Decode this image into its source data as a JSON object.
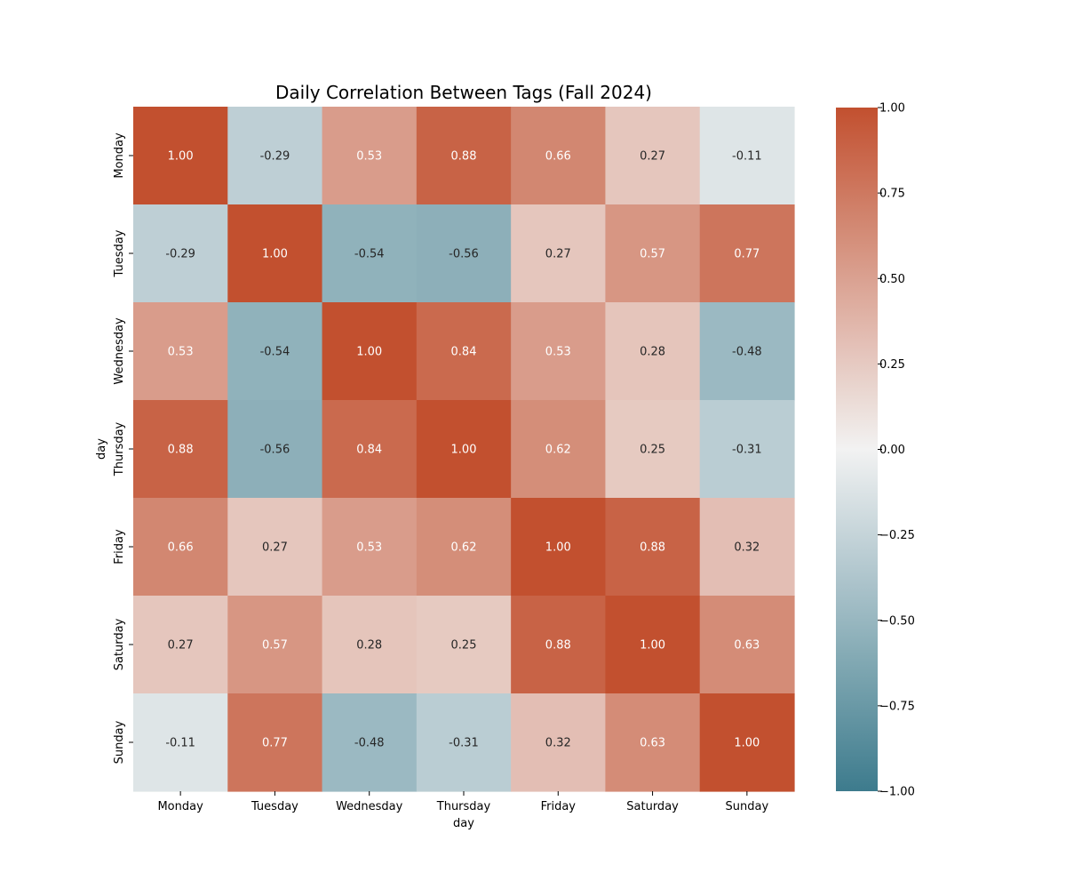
{
  "chart_data": {
    "type": "heatmap",
    "title": "Daily Correlation Between Tags (Fall 2024)",
    "xlabel": "day",
    "ylabel": "day",
    "rows": [
      "Monday",
      "Tuesday",
      "Wednesday",
      "Thursday",
      "Friday",
      "Saturday",
      "Sunday"
    ],
    "columns": [
      "Monday",
      "Tuesday",
      "Wednesday",
      "Thursday",
      "Friday",
      "Saturday",
      "Sunday"
    ],
    "values": [
      [
        1.0,
        -0.29,
        0.53,
        0.88,
        0.66,
        0.27,
        -0.11
      ],
      [
        -0.29,
        1.0,
        -0.54,
        -0.56,
        0.27,
        0.57,
        0.77
      ],
      [
        0.53,
        -0.54,
        1.0,
        0.84,
        0.53,
        0.28,
        -0.48
      ],
      [
        0.88,
        -0.56,
        0.84,
        1.0,
        0.62,
        0.25,
        -0.31
      ],
      [
        0.66,
        0.27,
        0.53,
        0.62,
        1.0,
        0.88,
        0.32
      ],
      [
        0.27,
        0.57,
        0.28,
        0.25,
        0.88,
        1.0,
        0.63
      ],
      [
        -0.11,
        0.77,
        -0.48,
        -0.31,
        0.32,
        0.63,
        1.0
      ]
    ],
    "annotation_format": "2 decimals",
    "value_range": [
      -1.0,
      1.0
    ],
    "colorbar": {
      "ticks": [
        1.0,
        0.75,
        0.5,
        0.25,
        0.0,
        -0.25,
        -0.5,
        -0.75,
        -1.0
      ],
      "tick_labels": [
        "1.00",
        "0.75",
        "0.50",
        "0.25",
        "0.00",
        "−0.25",
        "−0.50",
        "−0.75",
        "−1.00"
      ],
      "orientation": "vertical",
      "placement": "right"
    },
    "colors": {
      "negative": "#3d7b8d",
      "center": "#f2f2f2",
      "positive": "#c2502f",
      "text_dark": "#262626",
      "text_light": "#ffffff"
    },
    "grid": false,
    "legend": "colorbar-right"
  }
}
